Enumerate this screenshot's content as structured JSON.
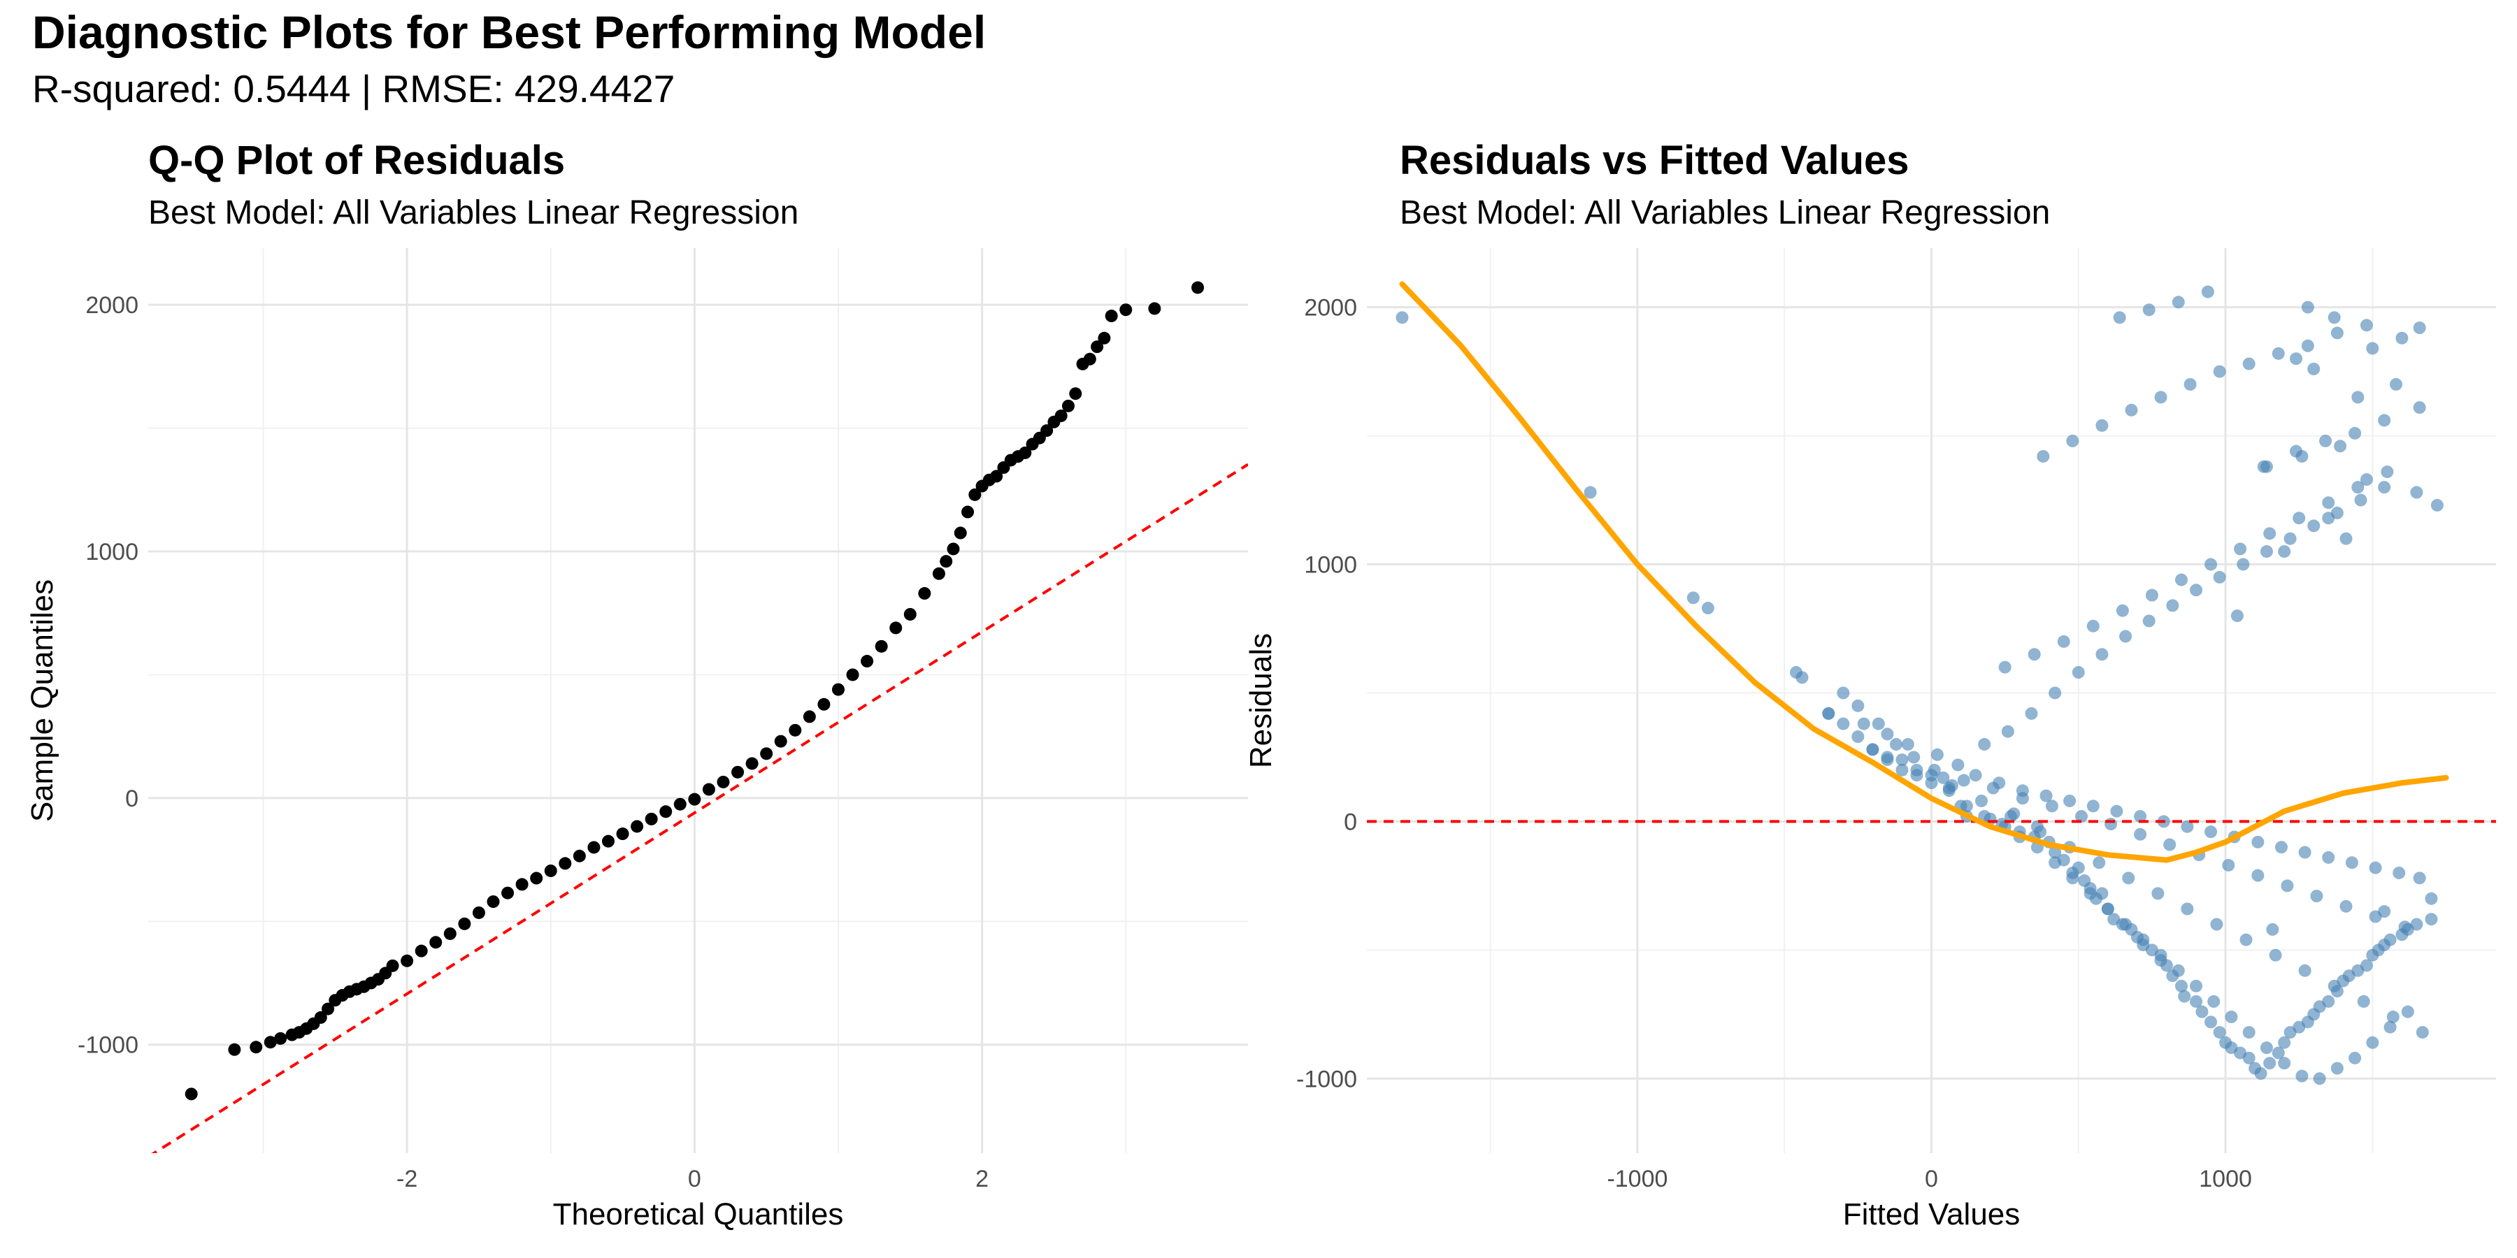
{
  "title": "Diagnostic Plots for Best Performing Model",
  "subtitle": "R-squared: 0.5444 | RMSE: 429.4427",
  "chart_data": [
    {
      "type": "scatter",
      "title": "Q-Q Plot of Residuals",
      "subtitle": "Best Model: All Variables Linear Regression",
      "xlabel": "Theoretical Quantiles",
      "ylabel": "Sample Quantiles",
      "xlim": [
        -3.8,
        3.85
      ],
      "ylim": [
        -1440,
        2230
      ],
      "xticks": [
        -2,
        0,
        2
      ],
      "xtick_labels": [
        "-2",
        "0",
        "2"
      ],
      "yticks": [
        -1000,
        0,
        1000,
        2000
      ],
      "ytick_labels": [
        "-1000",
        "0",
        "1000",
        "2000"
      ],
      "grid": true,
      "point_color": "#000000",
      "reference_line": {
        "intercept": -60,
        "slope": 367,
        "color": "#ff0000",
        "style": "dashed"
      },
      "points": {
        "x": [
          -3.5,
          -3.2,
          -3.05,
          -2.95,
          -2.88,
          -2.8,
          -2.75,
          -2.7,
          -2.65,
          -2.6,
          -2.55,
          -2.5,
          -2.45,
          -2.4,
          -2.35,
          -2.3,
          -2.25,
          -2.2,
          -2.15,
          -2.1,
          -2.0,
          -1.9,
          -1.8,
          -1.7,
          -1.6,
          -1.5,
          -1.4,
          -1.3,
          -1.2,
          -1.1,
          -1.0,
          -0.9,
          -0.8,
          -0.7,
          -0.6,
          -0.5,
          -0.4,
          -0.3,
          -0.2,
          -0.1,
          0.0,
          0.1,
          0.2,
          0.3,
          0.4,
          0.5,
          0.6,
          0.7,
          0.8,
          0.9,
          1.0,
          1.1,
          1.2,
          1.3,
          1.4,
          1.5,
          1.6,
          1.7,
          1.75,
          1.8,
          1.85,
          1.9,
          1.95,
          2.0,
          2.05,
          2.1,
          2.15,
          2.2,
          2.25,
          2.3,
          2.35,
          2.4,
          2.45,
          2.5,
          2.55,
          2.6,
          2.65,
          2.7,
          2.75,
          2.8,
          2.85,
          2.9,
          3.0,
          3.2,
          3.5
        ],
        "y": [
          -1200,
          -1020,
          -1010,
          -990,
          -975,
          -960,
          -950,
          -935,
          -915,
          -890,
          -855,
          -820,
          -800,
          -785,
          -775,
          -765,
          -750,
          -735,
          -710,
          -680,
          -660,
          -620,
          -585,
          -550,
          -510,
          -465,
          -420,
          -385,
          -350,
          -325,
          -295,
          -265,
          -235,
          -200,
          -175,
          -145,
          -115,
          -85,
          -55,
          -25,
          -5,
          35,
          65,
          105,
          140,
          180,
          230,
          275,
          330,
          380,
          440,
          500,
          555,
          615,
          690,
          745,
          830,
          910,
          960,
          1010,
          1075,
          1160,
          1230,
          1265,
          1290,
          1305,
          1340,
          1370,
          1385,
          1400,
          1435,
          1460,
          1490,
          1525,
          1550,
          1590,
          1640,
          1760,
          1780,
          1830,
          1865,
          1955,
          1980,
          1985,
          2070
        ]
      }
    },
    {
      "type": "scatter",
      "title": "Residuals vs Fitted Values",
      "subtitle": "Best Model: All Variables Linear Regression",
      "xlabel": "Fitted Values",
      "ylabel": "Residuals",
      "xlim": [
        -1920,
        1920
      ],
      "ylim": [
        -1290,
        2230
      ],
      "xticks": [
        -1000,
        0,
        1000
      ],
      "xtick_labels": [
        "-1000",
        "0",
        "1000"
      ],
      "yticks": [
        -1000,
        0,
        1000,
        2000
      ],
      "ytick_labels": [
        "-1000",
        "0",
        "1000",
        "2000"
      ],
      "grid": true,
      "point_color": "#4682b4",
      "zero_line": {
        "y": 0,
        "color": "#ff0000",
        "style": "dashed"
      },
      "smooth_line": {
        "color": "#ffa500",
        "x": [
          -1800,
          -1600,
          -1400,
          -1200,
          -1000,
          -800,
          -600,
          -400,
          -200,
          0,
          200,
          400,
          600,
          800,
          900,
          1000,
          1200,
          1400,
          1600,
          1750
        ],
        "y": [
          2090,
          1850,
          1570,
          1280,
          1000,
          760,
          540,
          360,
          230,
          90,
          -20,
          -90,
          -130,
          -150,
          -120,
          -80,
          40,
          110,
          150,
          170
        ]
      },
      "points": {
        "x": [
          -1800,
          -1160,
          -810,
          -760,
          -460,
          -440,
          -350,
          -300,
          -250,
          -200,
          -150,
          -100,
          -50,
          0,
          40,
          60,
          100,
          120,
          200,
          240,
          280,
          300,
          350,
          360,
          400,
          420,
          450,
          480,
          500,
          520,
          540,
          560,
          580,
          600,
          620,
          650,
          680,
          700,
          720,
          750,
          780,
          800,
          820,
          850,
          860,
          900,
          920,
          950,
          980,
          1000,
          1020,
          1050,
          1080,
          1100,
          1120,
          1150,
          1180,
          1200,
          1220,
          1250,
          1280,
          1300,
          1320,
          1350,
          1380,
          1400,
          1420,
          1450,
          1480,
          1500,
          1520,
          1540,
          1560,
          1600,
          1620,
          1650,
          1700,
          -300,
          -250,
          -180,
          -120,
          -60,
          0,
          60,
          120,
          180,
          250,
          300,
          360,
          420,
          480,
          540,
          600,
          660,
          720,
          780,
          840,
          900,
          960,
          1020,
          1080,
          1140,
          1200,
          1260,
          1320,
          1380,
          1440,
          1500,
          1560,
          1620,
          180,
          260,
          340,
          420,
          500,
          580,
          660,
          740,
          820,
          900,
          980,
          1060,
          1140,
          1220,
          1300,
          1380,
          1460,
          1540,
          -350,
          -230,
          -150,
          -80,
          20,
          90,
          150,
          230,
          310,
          390,
          470,
          550,
          630,
          710,
          790,
          870,
          950,
          1030,
          1110,
          1190,
          1270,
          1350,
          1430,
          1510,
          1590,
          1660,
          -200,
          -100,
          10,
          110,
          210,
          310,
          410,
          510,
          610,
          710,
          810,
          910,
          1010,
          1110,
          1210,
          1310,
          1410,
          1510,
          1610,
          -150,
          -50,
          70,
          170,
          270,
          370,
          470,
          570,
          670,
          770,
          870,
          970,
          1070,
          1170,
          1270,
          1370,
          1470,
          1570,
          1670,
          250,
          350,
          450,
          550,
          650,
          750,
          850,
          950,
          1050,
          1150,
          1250,
          1350,
          1450,
          1550,
          380,
          480,
          580,
          680,
          780,
          880,
          980,
          1080,
          1180,
          1280,
          1380,
          1480,
          640,
          740,
          840,
          940,
          1040,
          1140,
          1240,
          1340,
          1440,
          1540,
          1660,
          1450,
          1580,
          1300,
          1240,
          1500,
          1600,
          1660,
          1370,
          1280,
          1200,
          1410,
          1350,
          1720,
          1650,
          1480,
          1130,
          1260,
          1390,
          1700,
          1540,
          1160
        ],
        "y": [
          1960,
          1280,
          870,
          830,
          580,
          560,
          420,
          380,
          330,
          280,
          240,
          200,
          180,
          150,
          170,
          130,
          60,
          20,
          10,
          -10,
          30,
          -40,
          -60,
          -20,
          -80,
          -120,
          -150,
          -200,
          -180,
          -230,
          -260,
          -300,
          -280,
          -340,
          -380,
          -400,
          -420,
          -450,
          -480,
          -500,
          -540,
          -560,
          -600,
          -640,
          -680,
          -700,
          -740,
          -780,
          -820,
          -860,
          -880,
          -900,
          -920,
          -960,
          -980,
          -940,
          -900,
          -860,
          -820,
          -800,
          -780,
          -750,
          -720,
          -700,
          -660,
          -620,
          -600,
          -580,
          -560,
          -520,
          -500,
          -480,
          -460,
          -440,
          -420,
          -400,
          -380,
          500,
          450,
          380,
          300,
          250,
          180,
          120,
          60,
          20,
          -20,
          -60,
          -100,
          -160,
          -220,
          -280,
          -340,
          -400,
          -460,
          -520,
          -580,
          -640,
          -700,
          -760,
          -820,
          -880,
          -940,
          -990,
          -1000,
          -960,
          -920,
          -860,
          -800,
          -740,
          300,
          350,
          420,
          500,
          580,
          650,
          720,
          780,
          840,
          900,
          950,
          1000,
          1050,
          1100,
          1150,
          1200,
          1250,
          1300,
          420,
          380,
          340,
          300,
          260,
          220,
          180,
          150,
          120,
          100,
          80,
          60,
          40,
          20,
          0,
          -20,
          -40,
          -60,
          -80,
          -100,
          -120,
          -140,
          -160,
          -180,
          -200,
          -220,
          280,
          240,
          200,
          160,
          130,
          90,
          60,
          20,
          -10,
          -50,
          -90,
          -130,
          -170,
          -210,
          -250,
          -290,
          -330,
          -370,
          -410,
          250,
          200,
          140,
          80,
          20,
          -40,
          -100,
          -160,
          -220,
          -280,
          -340,
          -400,
          -460,
          -520,
          -580,
          -640,
          -700,
          -760,
          -820,
          600,
          650,
          700,
          760,
          820,
          880,
          940,
          1000,
          1060,
          1120,
          1180,
          1240,
          1300,
          1360,
          1420,
          1480,
          1540,
          1600,
          1650,
          1700,
          1750,
          1780,
          1820,
          1850,
          1900,
          1930,
          1960,
          1990,
          2020,
          2060,
          800,
          1380,
          1440,
          1480,
          1510,
          1560,
          1610,
          1650,
          1700,
          1760,
          1800,
          1840,
          1880,
          1920,
          1960,
          2000,
          1050,
          1100,
          1180,
          1230,
          1280,
          1330,
          1380,
          1420,
          1460,
          -300,
          -350,
          -420
        ]
      }
    }
  ]
}
